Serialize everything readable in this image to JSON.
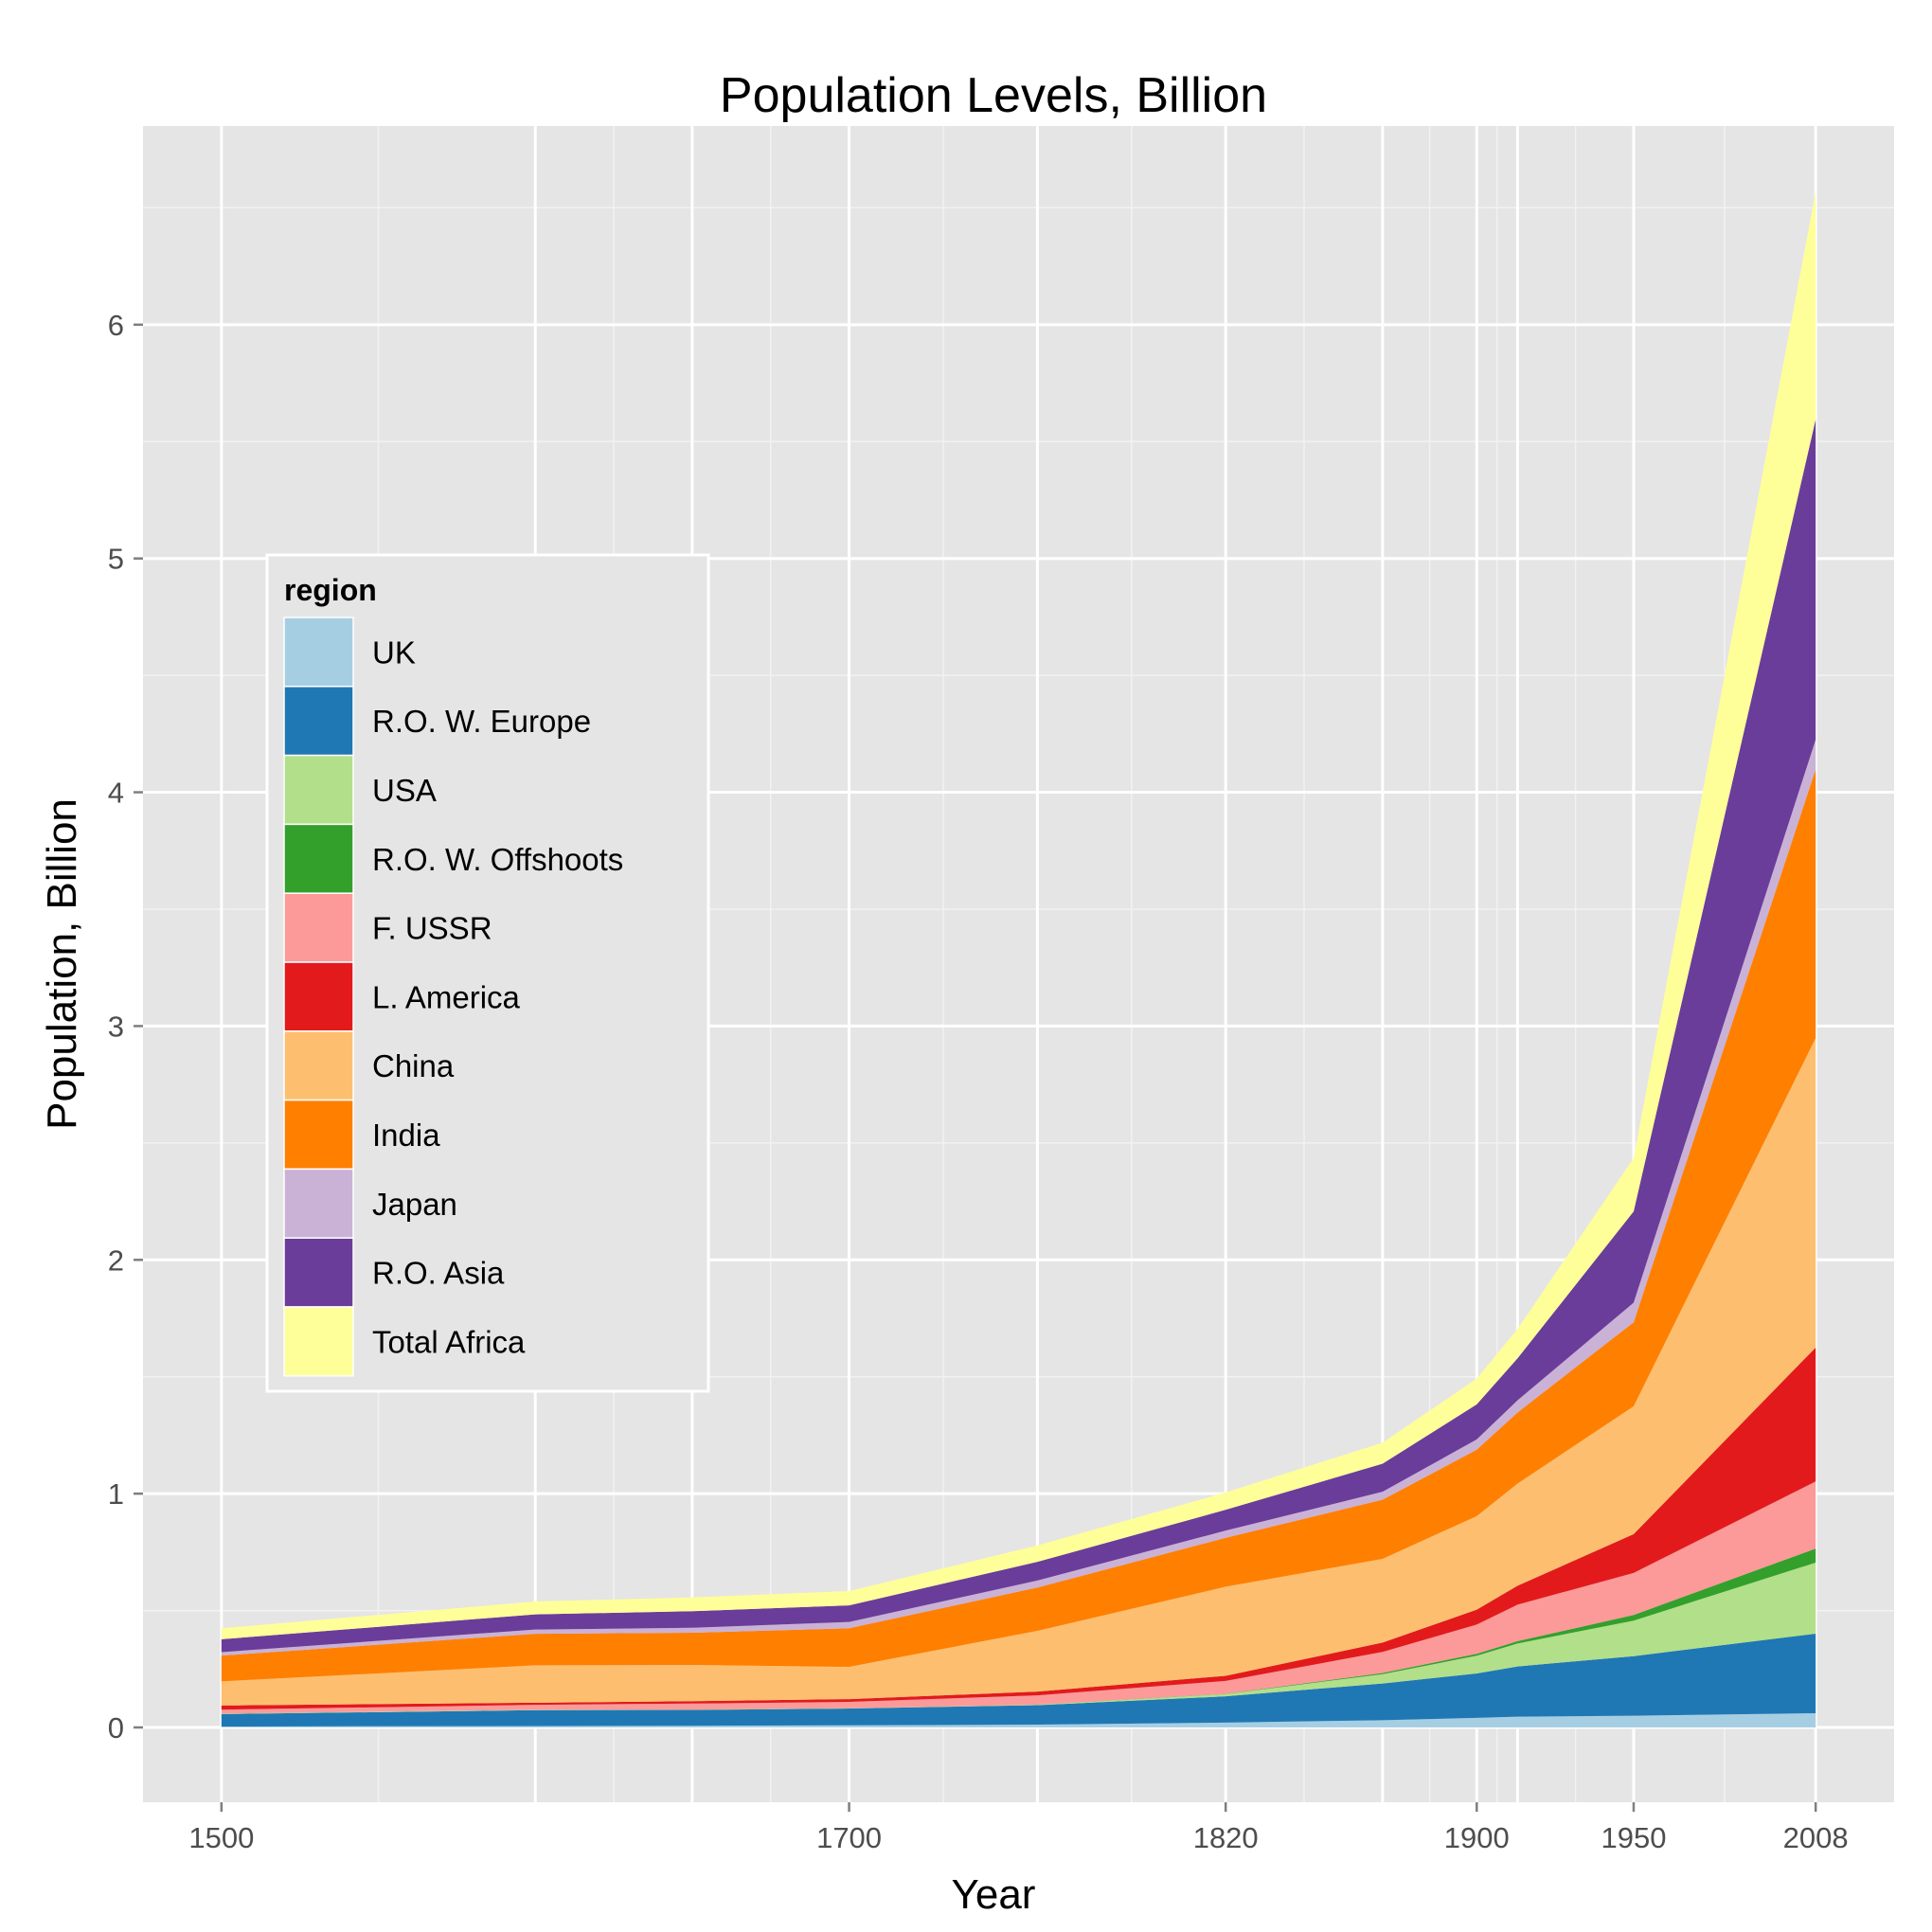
{
  "chart_data": {
    "type": "area",
    "stacked": true,
    "title": "Population Levels, Billion",
    "xlabel": "Year",
    "ylabel": "Population, Billion",
    "x": [
      1500,
      1600,
      1650,
      1700,
      1760,
      1820,
      1870,
      1900,
      1913,
      1950,
      2008
    ],
    "x_ticks": [
      1500,
      1700,
      1820,
      1900,
      1950,
      2008
    ],
    "xlim": [
      1475,
      2033
    ],
    "y_ticks": [
      0,
      1,
      2,
      3,
      4,
      5,
      6
    ],
    "ylim": [
      -0.32,
      6.85
    ],
    "grid": true,
    "legend": {
      "title": "region",
      "placement": "left, middle"
    },
    "series": [
      {
        "name": "UK",
        "color": "#A6CEE3",
        "values": [
          0.004,
          0.006,
          0.007,
          0.009,
          0.012,
          0.021,
          0.031,
          0.041,
          0.046,
          0.05,
          0.061
        ]
      },
      {
        "name": "R.O. W. Europe",
        "color": "#1F78B4",
        "values": [
          0.053,
          0.068,
          0.068,
          0.072,
          0.083,
          0.112,
          0.157,
          0.19,
          0.215,
          0.255,
          0.34
        ]
      },
      {
        "name": "USA",
        "color": "#B2DF8A",
        "values": [
          0.002,
          0.0015,
          0.001,
          0.001,
          0.002,
          0.01,
          0.04,
          0.076,
          0.098,
          0.152,
          0.304
        ]
      },
      {
        "name": "R.O. W. Offshoots",
        "color": "#33A02C",
        "values": [
          0.0002,
          0.0002,
          0.0002,
          0.0002,
          0.0003,
          0.001,
          0.005,
          0.008,
          0.01,
          0.024,
          0.06
        ]
      },
      {
        "name": "F. USSR",
        "color": "#FB9A99",
        "values": [
          0.017,
          0.021,
          0.026,
          0.027,
          0.04,
          0.055,
          0.09,
          0.125,
          0.156,
          0.18,
          0.287
        ]
      },
      {
        "name": "L. America",
        "color": "#E31A1C",
        "values": [
          0.018,
          0.009,
          0.01,
          0.012,
          0.016,
          0.022,
          0.04,
          0.064,
          0.081,
          0.166,
          0.573
        ]
      },
      {
        "name": "China",
        "color": "#FDBF6F",
        "values": [
          0.103,
          0.16,
          0.155,
          0.138,
          0.26,
          0.381,
          0.358,
          0.4,
          0.437,
          0.547,
          1.324
        ]
      },
      {
        "name": "India",
        "color": "#FF7F00",
        "values": [
          0.11,
          0.135,
          0.138,
          0.165,
          0.185,
          0.209,
          0.253,
          0.284,
          0.304,
          0.359,
          1.149
        ]
      },
      {
        "name": "Japan",
        "color": "#CAB2D6",
        "values": [
          0.015,
          0.018,
          0.021,
          0.027,
          0.03,
          0.031,
          0.034,
          0.044,
          0.052,
          0.084,
          0.127
        ]
      },
      {
        "name": "R.O. Asia",
        "color": "#6A3D9A",
        "values": [
          0.055,
          0.065,
          0.071,
          0.071,
          0.08,
          0.089,
          0.12,
          0.15,
          0.18,
          0.39,
          1.37
        ]
      },
      {
        "name": "Total Africa",
        "color": "#FFFF99",
        "values": [
          0.047,
          0.055,
          0.059,
          0.061,
          0.07,
          0.074,
          0.09,
          0.11,
          0.125,
          0.228,
          0.973
        ]
      }
    ]
  }
}
